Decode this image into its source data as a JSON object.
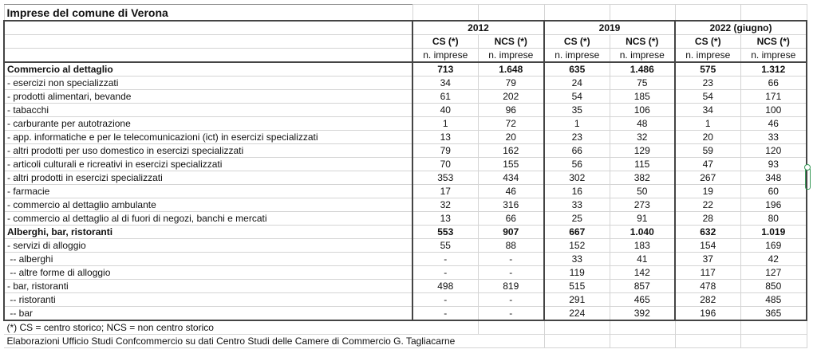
{
  "title": "Imprese del comune di Verona",
  "years": [
    "2012",
    "2019",
    "2022 (giugno)"
  ],
  "col_heads": [
    "CS (*)",
    "NCS (*)",
    "CS (*)",
    "NCS (*)",
    "CS (*)",
    "NCS (*)"
  ],
  "unit": "n. imprese",
  "rows": [
    {
      "label": "Commercio al dettaglio",
      "bold": true,
      "values": [
        "713",
        "1.648",
        "635",
        "1.486",
        "575",
        "1.312"
      ]
    },
    {
      "label": "- esercizi non specializzati",
      "values": [
        "34",
        "79",
        "24",
        "75",
        "23",
        "66"
      ]
    },
    {
      "label": "- prodotti alimentari, bevande",
      "values": [
        "61",
        "202",
        "54",
        "185",
        "54",
        "171"
      ]
    },
    {
      "label": "- tabacchi",
      "values": [
        "40",
        "96",
        "35",
        "106",
        "34",
        "100"
      ]
    },
    {
      "label": "- carburante per autotrazione",
      "values": [
        "1",
        "72",
        "1",
        "48",
        "1",
        "46"
      ]
    },
    {
      "label": "- app. informatiche e per le telecomunicazioni (ict) in esercizi specializzati",
      "values": [
        "13",
        "20",
        "23",
        "32",
        "20",
        "33"
      ]
    },
    {
      "label": "- altri prodotti per uso domestico in esercizi specializzati",
      "values": [
        "79",
        "162",
        "66",
        "129",
        "59",
        "120"
      ]
    },
    {
      "label": "- articoli culturali e ricreativi in esercizi specializzati",
      "values": [
        "70",
        "155",
        "56",
        "115",
        "47",
        "93"
      ]
    },
    {
      "label": "- altri prodotti in esercizi specializzati",
      "values": [
        "353",
        "434",
        "302",
        "382",
        "267",
        "348"
      ]
    },
    {
      "label": "- farmacie",
      "values": [
        "17",
        "46",
        "16",
        "50",
        "19",
        "60"
      ]
    },
    {
      "label": "- commercio al dettaglio ambulante",
      "values": [
        "32",
        "316",
        "33",
        "273",
        "22",
        "196"
      ]
    },
    {
      "label": "- commercio al dettaglio al di fuori di negozi, banchi e mercati",
      "values": [
        "13",
        "66",
        "25",
        "91",
        "28",
        "80"
      ]
    },
    {
      "label": "Alberghi, bar, ristoranti",
      "bold": true,
      "values": [
        "553",
        "907",
        "667",
        "1.040",
        "632",
        "1.019"
      ]
    },
    {
      "label": "- servizi di alloggio",
      "values": [
        "55",
        "88",
        "152",
        "183",
        "154",
        "169"
      ]
    },
    {
      "label": " -- alberghi",
      "values": [
        "-",
        "-",
        "33",
        "41",
        "37",
        "42"
      ]
    },
    {
      "label": " -- altre forme di alloggio",
      "values": [
        "-",
        "-",
        "119",
        "142",
        "117",
        "127"
      ]
    },
    {
      "label": "- bar, ristoranti",
      "values": [
        "498",
        "819",
        "515",
        "857",
        "478",
        "850"
      ]
    },
    {
      "label": " -- ristoranti",
      "values": [
        "-",
        "-",
        "291",
        "465",
        "282",
        "485"
      ]
    },
    {
      "label": " -- bar",
      "values": [
        "-",
        "-",
        "224",
        "392",
        "196",
        "365"
      ]
    }
  ],
  "footnote": "(*) CS = centro storico; NCS = non centro storico",
  "source": "Elaborazioni Ufficio Studi Confcommercio su dati Centro Studi delle Camere di Commercio G. Tagliacarne"
}
